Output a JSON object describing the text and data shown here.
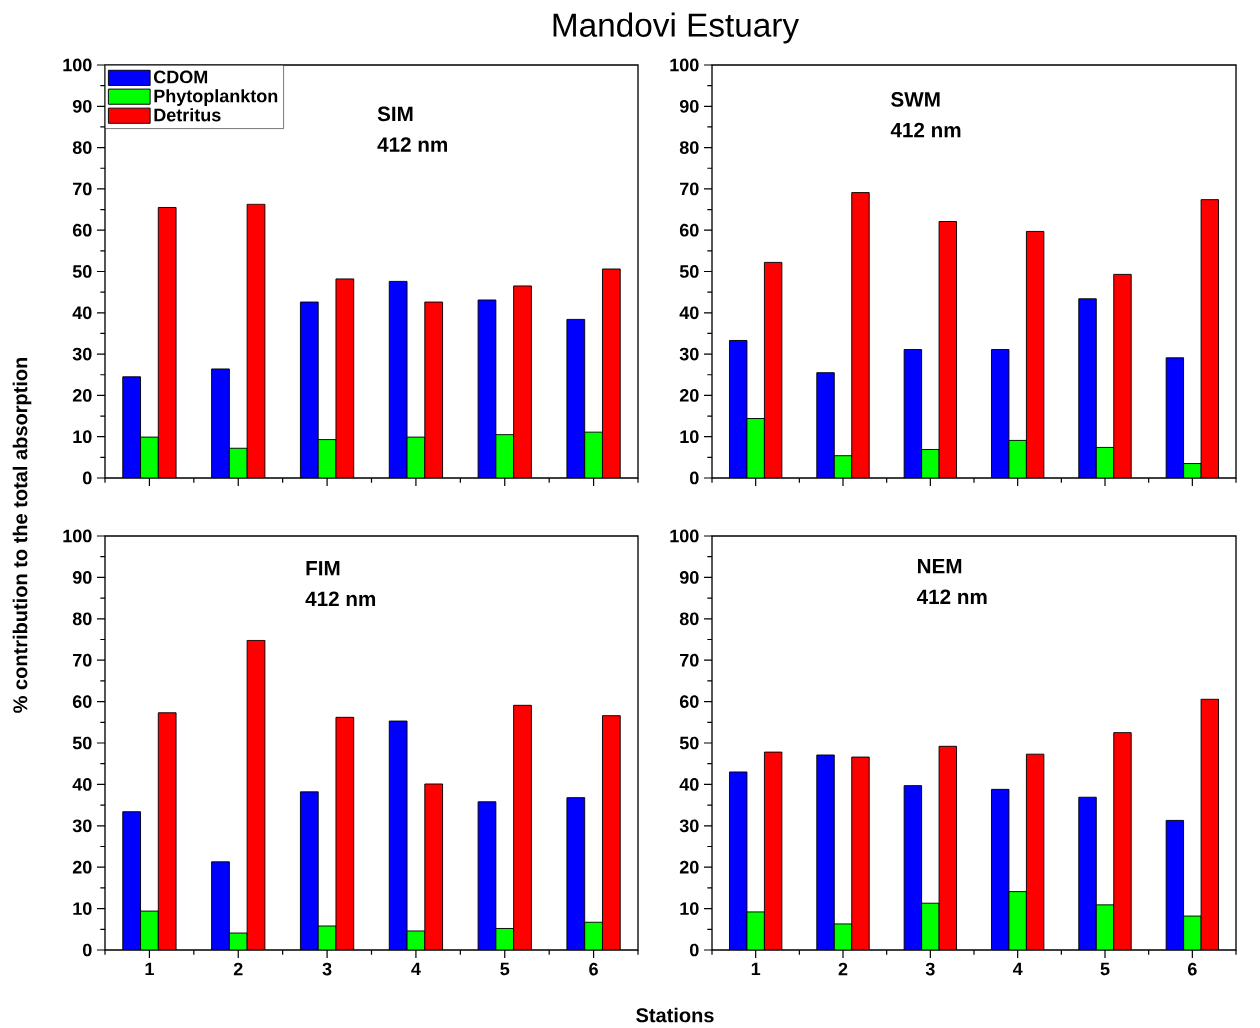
{
  "chart_data": [
    {
      "type": "bar",
      "title": "Mandovi Estuary",
      "ylabel": "% contribution to the total absorption",
      "annotations": [
        "SIM",
        "412 nm"
      ],
      "categories": [
        "1",
        "2",
        "3",
        "4",
        "5",
        "6"
      ],
      "series": [
        {
          "name": "CDOM",
          "color": "#0000ff",
          "values": [
            24.5,
            26.4,
            42.6,
            47.6,
            43.1,
            38.4
          ]
        },
        {
          "name": "Phytoplankton",
          "color": "#00ff00",
          "values": [
            9.9,
            7.2,
            9.3,
            9.9,
            10.5,
            11.1
          ]
        },
        {
          "name": "Detritus",
          "color": "#ff0000",
          "values": [
            65.5,
            66.3,
            48.2,
            42.6,
            46.5,
            50.6
          ]
        }
      ],
      "ylim": [
        0,
        100
      ],
      "yticks": [
        0,
        10,
        20,
        30,
        40,
        50,
        60,
        70,
        80,
        90,
        100
      ],
      "legend": "top left",
      "tick_labels": "y"
    },
    {
      "type": "bar",
      "annotations": [
        "SWM",
        "412 nm"
      ],
      "categories": [
        "1",
        "2",
        "3",
        "4",
        "5",
        "6"
      ],
      "series": [
        {
          "color": "#0000ff",
          "values": [
            33.3,
            25.5,
            31.1,
            31.1,
            43.4,
            29.1
          ]
        },
        {
          "color": "#00ff00",
          "values": [
            14.4,
            5.4,
            6.9,
            9.1,
            7.4,
            3.5
          ]
        },
        {
          "color": "#ff0000",
          "values": [
            52.2,
            69.1,
            62.1,
            59.7,
            49.3,
            67.4
          ]
        }
      ],
      "ylim": [
        0,
        100
      ],
      "yticks": [
        0,
        10,
        20,
        30,
        40,
        50,
        60,
        70,
        80,
        90,
        100
      ],
      "tick_labels": "y"
    },
    {
      "type": "bar",
      "xlabel": "Stations",
      "annotations": [
        "FIM",
        "412 nm"
      ],
      "categories": [
        "1",
        "2",
        "3",
        "4",
        "5",
        "6"
      ],
      "series": [
        {
          "color": "#0000ff",
          "values": [
            33.4,
            21.3,
            38.2,
            55.3,
            35.8,
            36.8
          ]
        },
        {
          "color": "#00ff00",
          "values": [
            9.4,
            4.1,
            5.8,
            4.6,
            5.2,
            6.7
          ]
        },
        {
          "color": "#ff0000",
          "values": [
            57.3,
            74.8,
            56.2,
            40.1,
            59.1,
            56.6
          ]
        }
      ],
      "ylim": [
        0,
        100
      ],
      "yticks": [
        0,
        10,
        20,
        30,
        40,
        50,
        60,
        70,
        80,
        90,
        100
      ]
    },
    {
      "type": "bar",
      "annotations": [
        "NEM",
        "412 nm"
      ],
      "categories": [
        "1",
        "2",
        "3",
        "4",
        "5",
        "6"
      ],
      "series": [
        {
          "color": "#0000ff",
          "values": [
            43.0,
            47.1,
            39.7,
            38.8,
            36.9,
            31.3
          ]
        },
        {
          "color": "#00ff00",
          "values": [
            9.2,
            6.3,
            11.3,
            14.1,
            10.9,
            8.2
          ]
        },
        {
          "color": "#ff0000",
          "values": [
            47.8,
            46.6,
            49.2,
            47.3,
            52.5,
            60.6
          ]
        }
      ],
      "ylim": [
        0,
        100
      ],
      "yticks": [
        0,
        10,
        20,
        30,
        40,
        50,
        60,
        70,
        80,
        90,
        100
      ]
    }
  ]
}
